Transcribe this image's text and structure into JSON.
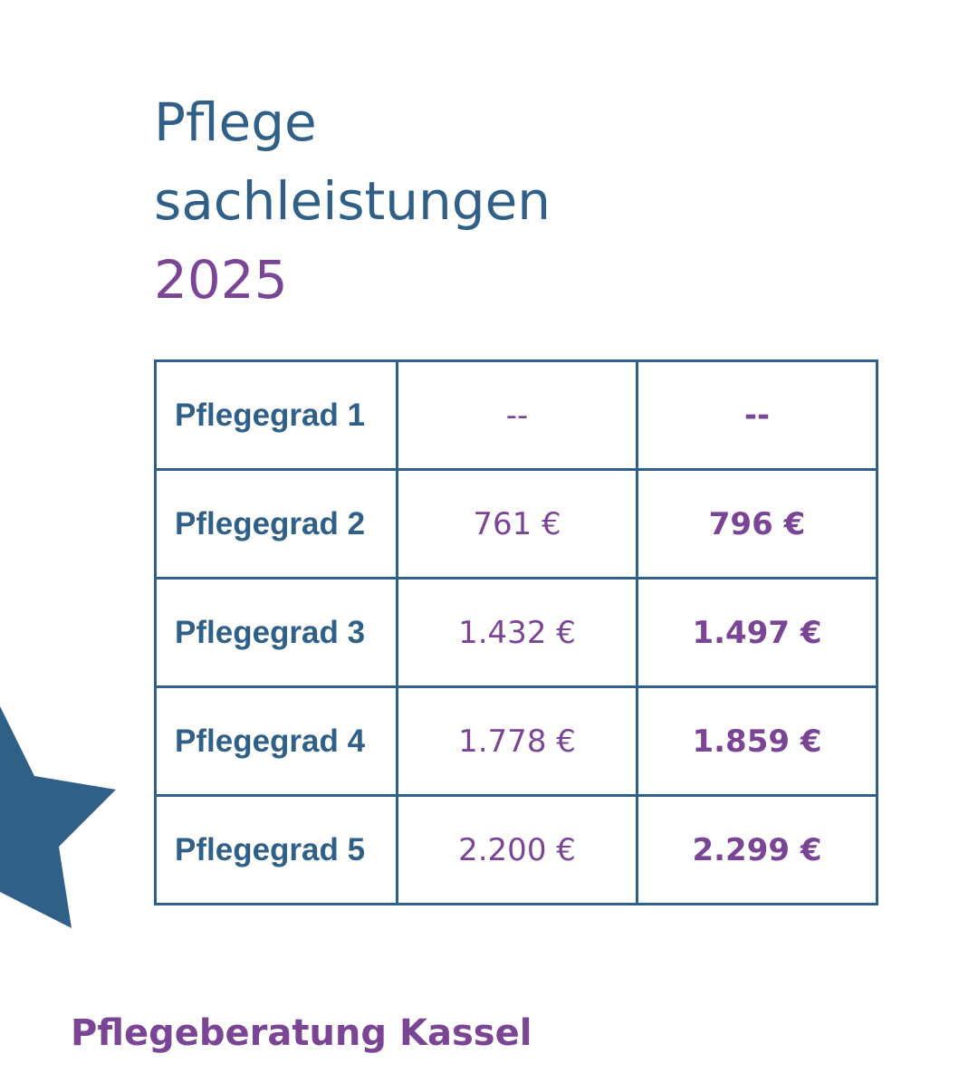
{
  "title": {
    "line1": "Pflege",
    "line2": "sachleistungen",
    "year": "2025"
  },
  "table": {
    "rows": [
      {
        "grade": "Pflegegrad 1",
        "old": "--",
        "new": "--"
      },
      {
        "grade": "Pflegegrad 2",
        "old": "761 €",
        "new": "796 €"
      },
      {
        "grade": "Pflegegrad 3",
        "old": "1.432 €",
        "new": "1.497 €"
      },
      {
        "grade": "Pflegegrad 4",
        "old": "1.778 €",
        "new": "1.859 €"
      },
      {
        "grade": "Pflegegrad 5",
        "old": "2.200 €",
        "new": "2.299 €"
      }
    ]
  },
  "footer": "Pflegeberatung Kassel",
  "colors": {
    "primary_blue": "#306088",
    "accent_purple": "#7b4595",
    "background": "#ffffff"
  },
  "icons": {
    "decoration": "star-icon"
  }
}
